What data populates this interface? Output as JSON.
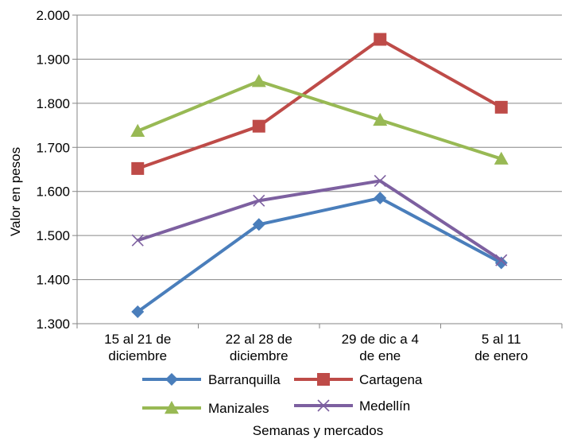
{
  "chart_data": {
    "type": "line",
    "title": "",
    "xlabel": "Semanas y mercados",
    "ylabel": "Valor en pesos",
    "categories": [
      [
        "15 al 21 de",
        "diciembre"
      ],
      [
        "22 al 28 de",
        "diciembre"
      ],
      [
        "29 de dic a 4",
        "de ene"
      ],
      [
        "5 al 11",
        "de enero"
      ]
    ],
    "ylim": [
      1300,
      2000
    ],
    "yticks": [
      1300,
      1400,
      1500,
      1600,
      1700,
      1800,
      1900,
      2000
    ],
    "ytick_labels": [
      "1.300",
      "1.400",
      "1.500",
      "1.600",
      "1.700",
      "1.800",
      "1.900",
      "2.000"
    ],
    "grid": true,
    "legend_position": "bottom",
    "series": [
      {
        "name": "Barranquilla",
        "color": "#4a7ebb",
        "marker": "diamond",
        "values": [
          1327,
          1525,
          1585,
          1438
        ]
      },
      {
        "name": "Cartagena",
        "color": "#be4b48",
        "marker": "square",
        "values": [
          1652,
          1748,
          1945,
          1791
        ]
      },
      {
        "name": "Manizales",
        "color": "#98b954",
        "marker": "triangle",
        "values": [
          1737,
          1850,
          1762,
          1674
        ]
      },
      {
        "name": "Medellín",
        "color": "#7d60a0",
        "marker": "x",
        "values": [
          1489,
          1579,
          1624,
          1444
        ]
      }
    ]
  }
}
